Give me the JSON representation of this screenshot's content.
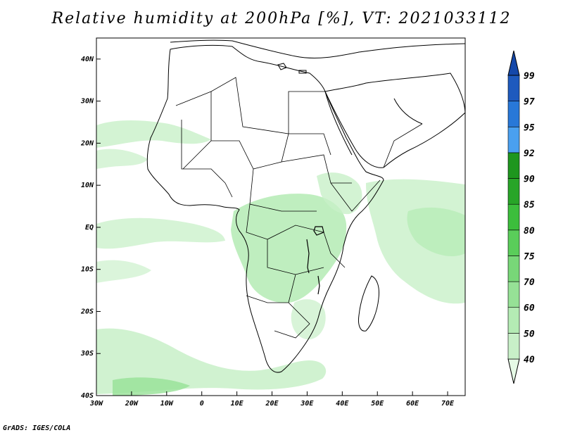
{
  "title": "Relative humidity at 200hPa [%], VT: 2021033112",
  "credit": "GrADS: IGES/COLA",
  "map": {
    "lon_range": [
      -30,
      75
    ],
    "lat_range": [
      -40,
      45
    ],
    "lat_ticks": [
      {
        "value": 40,
        "label": "40N"
      },
      {
        "value": 30,
        "label": "30N"
      },
      {
        "value": 20,
        "label": "20N"
      },
      {
        "value": 10,
        "label": "10N"
      },
      {
        "value": 0,
        "label": "EQ"
      },
      {
        "value": -10,
        "label": "10S"
      },
      {
        "value": -20,
        "label": "20S"
      },
      {
        "value": -30,
        "label": "30S"
      },
      {
        "value": -40,
        "label": "40S"
      }
    ],
    "lon_ticks": [
      {
        "value": -30,
        "label": "30W"
      },
      {
        "value": -20,
        "label": "20W"
      },
      {
        "value": -10,
        "label": "10W"
      },
      {
        "value": 0,
        "label": "0"
      },
      {
        "value": 10,
        "label": "10E"
      },
      {
        "value": 20,
        "label": "20E"
      },
      {
        "value": 30,
        "label": "30E"
      },
      {
        "value": 40,
        "label": "40E"
      },
      {
        "value": 50,
        "label": "50E"
      },
      {
        "value": 60,
        "label": "60E"
      },
      {
        "value": 70,
        "label": "70E"
      }
    ]
  },
  "colorbar": {
    "levels": [
      "40",
      "50",
      "60",
      "70",
      "75",
      "80",
      "85",
      "90",
      "92",
      "95",
      "97",
      "99"
    ],
    "colors": [
      "#e6fae6",
      "#c8f0c8",
      "#b4ebb4",
      "#96e196",
      "#78d778",
      "#5acd5a",
      "#3cbe3c",
      "#28a528",
      "#1e961e",
      "#4aa0f0",
      "#2878d8",
      "#1e5abe",
      "#1448aa"
    ]
  }
}
